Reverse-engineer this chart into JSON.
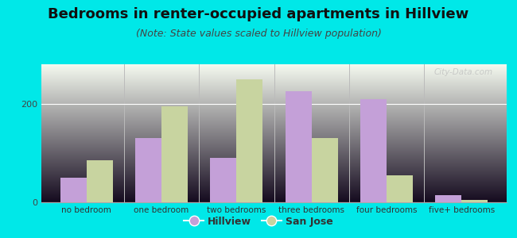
{
  "title": "Bedrooms in renter-occupied apartments in Hillview",
  "subtitle": "(Note: State values scaled to Hillview population)",
  "categories": [
    "no bedroom",
    "one bedroom",
    "two bedrooms",
    "three bedrooms",
    "four bedrooms",
    "five+ bedrooms"
  ],
  "hillview": [
    50,
    130,
    90,
    225,
    210,
    15
  ],
  "san_jose": [
    85,
    195,
    250,
    130,
    55,
    5
  ],
  "hillview_color": "#c4a0d8",
  "san_jose_color": "#c8d4a0",
  "background_outer": "#00e8e8",
  "ylim": [
    0,
    280
  ],
  "yticks": [
    0,
    200
  ],
  "bar_width": 0.35,
  "title_fontsize": 13,
  "subtitle_fontsize": 9,
  "legend_hillview": "Hillview",
  "legend_san_jose": "San Jose",
  "watermark": "City-Data.com"
}
